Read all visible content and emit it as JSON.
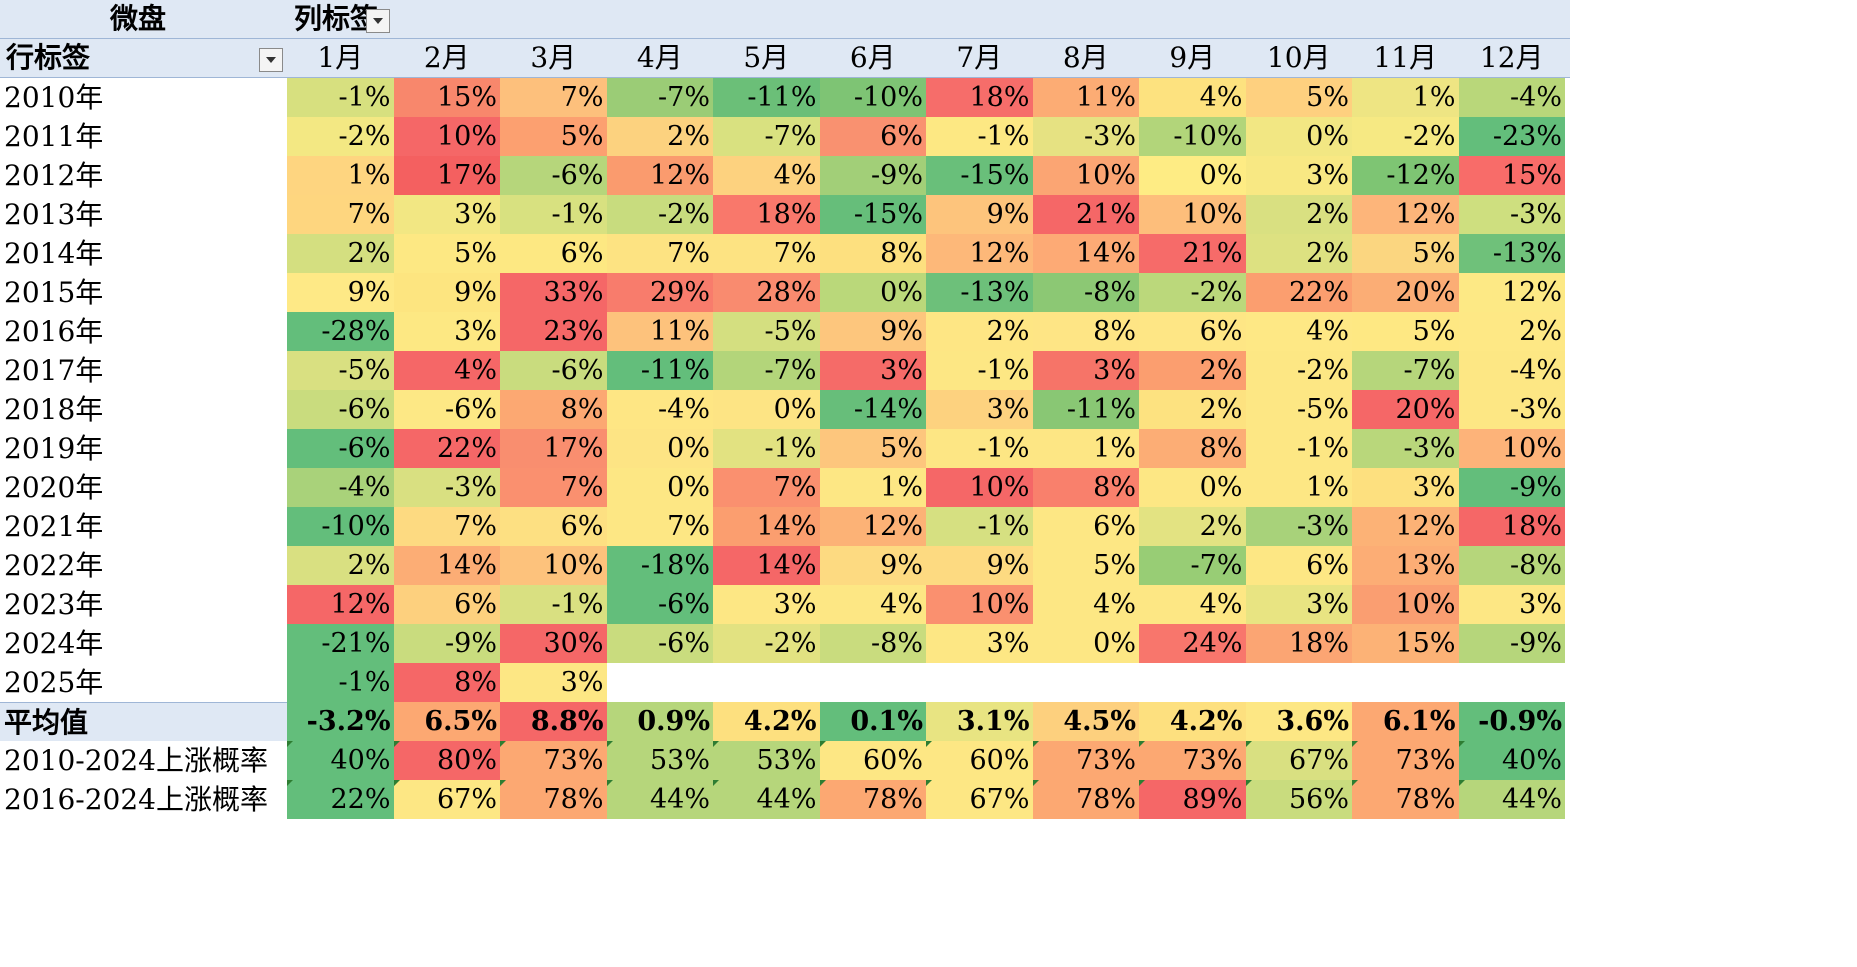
{
  "header": {
    "title": "微盘",
    "column_label": "列标签",
    "row_label": "行标签"
  },
  "months": [
    "1月",
    "2月",
    "3月",
    "4月",
    "5月",
    "6月",
    "7月",
    "8月",
    "9月",
    "10月",
    "11月",
    "12月"
  ],
  "rows": [
    {
      "label": "2010年",
      "values": [
        "-1%",
        "15%",
        "7%",
        "-7%",
        "-11%",
        "-10%",
        "18%",
        "11%",
        "4%",
        "5%",
        "1%",
        "-4%"
      ],
      "colors": [
        "#d7e07f",
        "#f8876c",
        "#fdc07c",
        "#9bcc76",
        "#6bbf78",
        "#7ec474",
        "#f66d6a",
        "#fcac74",
        "#fde27f",
        "#fed07f",
        "#eee583",
        "#b9d77a"
      ]
    },
    {
      "label": "2011年",
      "values": [
        "-2%",
        "10%",
        "5%",
        "2%",
        "-7%",
        "6%",
        "-1%",
        "-3%",
        "-10%",
        "0%",
        "-2%",
        "-23%"
      ],
      "colors": [
        "#f3e883",
        "#f56767",
        "#fca070",
        "#fcd27f",
        "#d9e180",
        "#f99170",
        "#fde883",
        "#e6e282",
        "#b2d57a",
        "#f2e783",
        "#f6e983",
        "#63be7b"
      ]
    },
    {
      "label": "2012年",
      "values": [
        "1%",
        "17%",
        "-6%",
        "12%",
        "4%",
        "-9%",
        "-15%",
        "10%",
        "0%",
        "3%",
        "-12%",
        "15%"
      ],
      "colors": [
        "#fed580",
        "#f46060",
        "#b6d67b",
        "#fa9b6e",
        "#fdd27f",
        "#a2cf78",
        "#69bf7a",
        "#fba573",
        "#feec84",
        "#f8e883",
        "#7ec573",
        "#f86c69"
      ]
    },
    {
      "label": "2013年",
      "values": [
        "7%",
        "3%",
        "-1%",
        "-2%",
        "18%",
        "-15%",
        "9%",
        "21%",
        "10%",
        "2%",
        "12%",
        "-3%"
      ],
      "colors": [
        "#fed67f",
        "#f2e783",
        "#d8e180",
        "#c8dc7e",
        "#f9786b",
        "#66be7a",
        "#fdc47c",
        "#f56767",
        "#fdbe7b",
        "#d9e081",
        "#fdb57a",
        "#cedf7f"
      ]
    },
    {
      "label": "2014年",
      "values": [
        "2%",
        "5%",
        "6%",
        "7%",
        "7%",
        "8%",
        "12%",
        "14%",
        "21%",
        "2%",
        "5%",
        "-13%"
      ],
      "colors": [
        "#d4df80",
        "#fde883",
        "#fde882",
        "#fde382",
        "#fde382",
        "#fde07f",
        "#fdb879",
        "#fdaa75",
        "#f66b69",
        "#dde181",
        "#fbd680",
        "#6fc17a"
      ]
    },
    {
      "label": "2015年",
      "values": [
        "9%",
        "9%",
        "33%",
        "29%",
        "28%",
        "0%",
        "-13%",
        "-8%",
        "-2%",
        "22%",
        "20%",
        "12%"
      ],
      "colors": [
        "#fee986",
        "#fde580",
        "#f56767",
        "#f87c6c",
        "#f98b6f",
        "#bad87a",
        "#6dc07a",
        "#8cc874",
        "#bbd87b",
        "#fb9e6f",
        "#fbad75",
        "#fde985"
      ]
    },
    {
      "label": "2016年",
      "values": [
        "-28%",
        "3%",
        "23%",
        "11%",
        "-5%",
        "9%",
        "2%",
        "8%",
        "6%",
        "4%",
        "5%",
        "2%"
      ],
      "colors": [
        "#63be7b",
        "#fde883",
        "#f56767",
        "#fdc27c",
        "#d4df80",
        "#fdc67d",
        "#fee684",
        "#fee585",
        "#fee685",
        "#fee885",
        "#fee883",
        "#fee885"
      ]
    },
    {
      "label": "2017年",
      "values": [
        "-5%",
        "4%",
        "-6%",
        "-11%",
        "-7%",
        "3%",
        "-1%",
        "3%",
        "2%",
        "-2%",
        "-7%",
        "-4%"
      ],
      "colors": [
        "#d9e081",
        "#f56767",
        "#c9dc7e",
        "#63be7b",
        "#b3d57a",
        "#f56b68",
        "#fde784",
        "#f67468",
        "#fb9e6f",
        "#fde784",
        "#b6d67b",
        "#fde784"
      ]
    },
    {
      "label": "2018年",
      "values": [
        "-6%",
        "-6%",
        "8%",
        "-4%",
        "0%",
        "-14%",
        "3%",
        "-11%",
        "2%",
        "-5%",
        "20%",
        "-3%"
      ],
      "colors": [
        "#c9dc7e",
        "#fde885",
        "#fca872",
        "#fee684",
        "#fde484",
        "#67be7a",
        "#fdd27f",
        "#89c774",
        "#fde280",
        "#fde784",
        "#f56767",
        "#fde784"
      ]
    },
    {
      "label": "2019年",
      "values": [
        "-6%",
        "22%",
        "17%",
        "0%",
        "-1%",
        "5%",
        "-1%",
        "1%",
        "8%",
        "-1%",
        "-3%",
        "10%"
      ],
      "colors": [
        "#63be7b",
        "#f56767",
        "#f98e6f",
        "#fde484",
        "#e2e281",
        "#fdc67d",
        "#fde684",
        "#fde684",
        "#fcad75",
        "#fde784",
        "#b9d77b",
        "#fdb379"
      ]
    },
    {
      "label": "2020年",
      "values": [
        "-4%",
        "-3%",
        "7%",
        "0%",
        "7%",
        "1%",
        "10%",
        "8%",
        "0%",
        "1%",
        "3%",
        "-9%"
      ],
      "colors": [
        "#a9d27a",
        "#d9e081",
        "#fa906f",
        "#fde784",
        "#fa906f",
        "#fde784",
        "#f56767",
        "#f9806c",
        "#fde784",
        "#fde784",
        "#fde07f",
        "#63be7b"
      ]
    },
    {
      "label": "2021年",
      "values": [
        "-10%",
        "7%",
        "6%",
        "7%",
        "14%",
        "12%",
        "-1%",
        "6%",
        "2%",
        "-3%",
        "12%",
        "18%"
      ],
      "colors": [
        "#63be7b",
        "#fdda81",
        "#fde082",
        "#fde784",
        "#fb9e6f",
        "#fcb276",
        "#d6e081",
        "#fde784",
        "#e3e382",
        "#a8d27a",
        "#fcb276",
        "#f56767"
      ]
    },
    {
      "label": "2022年",
      "values": [
        "2%",
        "14%",
        "10%",
        "-18%",
        "14%",
        "9%",
        "9%",
        "5%",
        "-7%",
        "6%",
        "13%",
        "-8%"
      ],
      "colors": [
        "#d9e081",
        "#fcad75",
        "#fdc27c",
        "#63be7b",
        "#f56767",
        "#fdda81",
        "#fdda81",
        "#fde784",
        "#98cd75",
        "#fde784",
        "#fcad75",
        "#b6d67b"
      ]
    },
    {
      "label": "2023年",
      "values": [
        "12%",
        "6%",
        "-1%",
        "-6%",
        "3%",
        "4%",
        "10%",
        "4%",
        "4%",
        "3%",
        "10%",
        "3%"
      ],
      "colors": [
        "#f56767",
        "#fdd07e",
        "#d9e081",
        "#63be7b",
        "#fde784",
        "#fde784",
        "#fa906f",
        "#fde784",
        "#fde784",
        "#e8e482",
        "#fa9e71",
        "#fde784"
      ]
    },
    {
      "label": "2024年",
      "values": [
        "-21%",
        "-9%",
        "30%",
        "-6%",
        "-2%",
        "-8%",
        "3%",
        "0%",
        "24%",
        "18%",
        "15%",
        "-9%"
      ],
      "colors": [
        "#63be7b",
        "#c9dc7e",
        "#f56767",
        "#c9dc7e",
        "#e2e281",
        "#c9dc7e",
        "#fde784",
        "#fde784",
        "#f8766c",
        "#fba573",
        "#fcb276",
        "#b6d67b"
      ]
    },
    {
      "label": "2025年",
      "values": [
        "-1%",
        "8%",
        "3%",
        "",
        "",
        "",
        "",
        "",
        "",
        "",
        "",
        ""
      ],
      "colors": [
        "#63be7b",
        "#f56767",
        "#fde784",
        "#ffffff",
        "#ffffff",
        "#ffffff",
        "#ffffff",
        "#ffffff",
        "#ffffff",
        "#ffffff",
        "#ffffff",
        "#ffffff"
      ]
    }
  ],
  "summary": [
    {
      "label": "平均值",
      "values": [
        "-3.2%",
        "6.5%",
        "8.8%",
        "0.9%",
        "4.2%",
        "0.1%",
        "3.1%",
        "4.5%",
        "4.2%",
        "3.6%",
        "6.1%",
        "-0.9%"
      ],
      "colors": [
        "#63be7b",
        "#fca872",
        "#f56767",
        "#b6d67b",
        "#fde07f",
        "#63be7b",
        "#e8e482",
        "#fdd07e",
        "#fde07f",
        "#fde784",
        "#fca872",
        "#63be7b"
      ]
    },
    {
      "label": "2010-2024上涨概率",
      "values": [
        "40%",
        "80%",
        "73%",
        "53%",
        "53%",
        "60%",
        "60%",
        "73%",
        "73%",
        "67%",
        "73%",
        "40%"
      ],
      "colors": [
        "#63be7b",
        "#f56767",
        "#fca872",
        "#b6d67b",
        "#b6d67b",
        "#fde784",
        "#fde784",
        "#fca872",
        "#fca872",
        "#d9e081",
        "#fca872",
        "#63be7b"
      ]
    },
    {
      "label": "2016-2024上涨概率",
      "values": [
        "22%",
        "67%",
        "78%",
        "44%",
        "44%",
        "78%",
        "67%",
        "78%",
        "89%",
        "56%",
        "78%",
        "44%"
      ],
      "colors": [
        "#63be7b",
        "#fde784",
        "#fca872",
        "#b6d67b",
        "#b6d67b",
        "#fca872",
        "#fde784",
        "#fca872",
        "#f56767",
        "#c9dc7e",
        "#fca872",
        "#b6d67b"
      ]
    }
  ]
}
